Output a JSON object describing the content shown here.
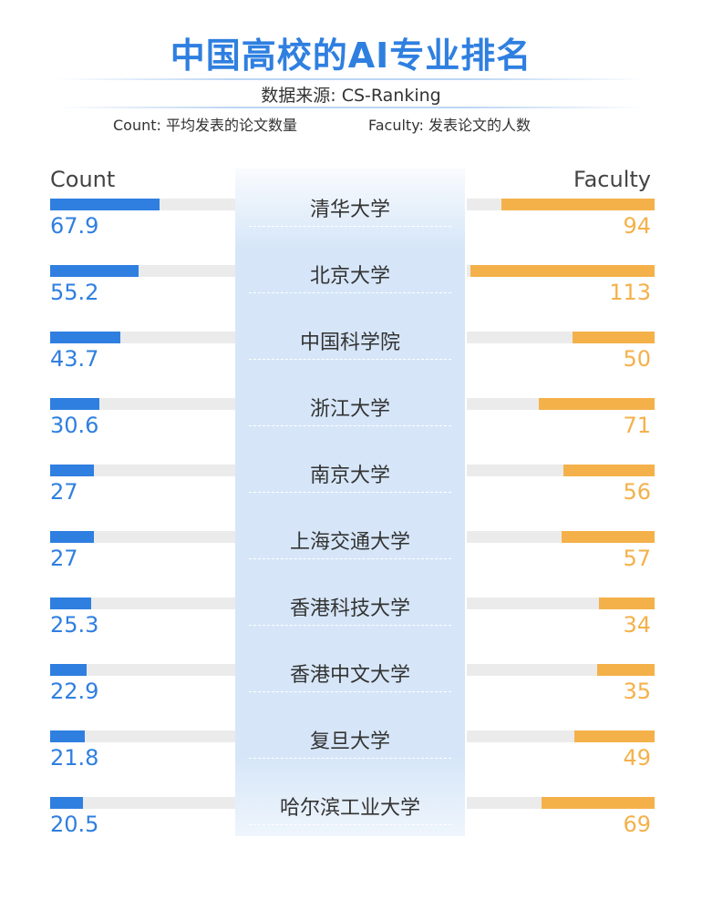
{
  "title": "中国高校的AI专业排名",
  "source": "数据来源: CS-Ranking",
  "legend": {
    "count": "Count: 平均发表的论文数量",
    "faculty": "Faculty: 发表论文的人数"
  },
  "colors": {
    "count": "#2f7fe0",
    "faculty": "#f4b14a",
    "title": "#2f7fe0"
  },
  "chart_data": {
    "type": "bar",
    "title": "中国高校的AI专业排名",
    "categories": [
      "清华大学",
      "北京大学",
      "中国科学院",
      "浙江大学",
      "南京大学",
      "上海交通大学",
      "香港科技大学",
      "香港中文大学",
      "复旦大学",
      "哈尔滨工业大学"
    ],
    "series": [
      {
        "name": "Count",
        "values": [
          67.9,
          55.2,
          43.7,
          30.6,
          27,
          27,
          25.3,
          22.9,
          21.8,
          20.5
        ]
      },
      {
        "name": "Faculty",
        "values": [
          94,
          113,
          50,
          71,
          56,
          57,
          34,
          35,
          49,
          69
        ]
      }
    ],
    "labels": {
      "count": [
        "67.9",
        "55.2",
        "43.7",
        "30.6",
        "27",
        "27",
        "25.3",
        "22.9",
        "21.8",
        "20.5"
      ],
      "faculty": [
        "94",
        "113",
        "50",
        "71",
        "56",
        "57",
        "34",
        "35",
        "49",
        "69"
      ]
    },
    "count_max": 115,
    "faculty_max": 115,
    "layout": "butterfly"
  }
}
